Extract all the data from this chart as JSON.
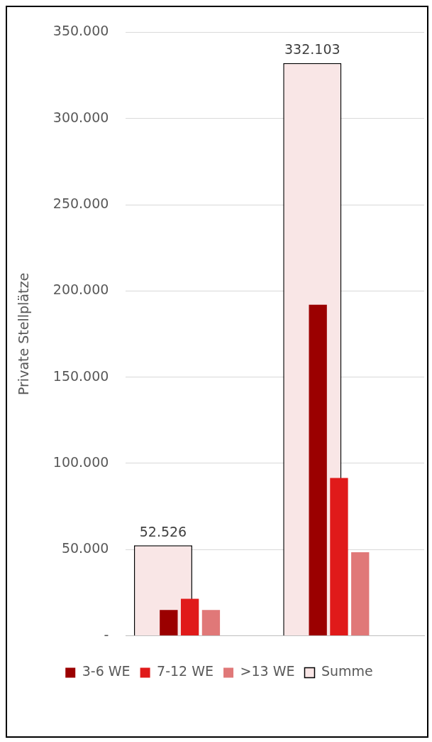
{
  "chart_data": {
    "type": "bar",
    "ylabel": "Private Stellplätze",
    "categories": [
      null,
      null
    ],
    "series": [
      {
        "name": "Summe",
        "color": "#f9e6e6",
        "values": [
          52526,
          332103
        ],
        "value_labels": [
          "52.526",
          "332.103"
        ]
      },
      {
        "name": "3-6 WE",
        "color": "#9b0000",
        "values": [
          15000,
          192000
        ]
      },
      {
        "name": "7-12 WE",
        "color": "#e01a1a",
        "values": [
          21500,
          91500
        ]
      },
      {
        "name": ">13 WE",
        "color": "#e07878",
        "values": [
          15000,
          48500
        ]
      }
    ],
    "ylim": [
      0,
      350000
    ],
    "yticks": [
      {
        "value": 0,
        "label": "-"
      },
      {
        "value": 50000,
        "label": "50.000"
      },
      {
        "value": 100000,
        "label": "100.000"
      },
      {
        "value": 150000,
        "label": "150.000"
      },
      {
        "value": 200000,
        "label": "200.000"
      },
      {
        "value": 250000,
        "label": "250.000"
      },
      {
        "value": 300000,
        "label": "300.000"
      },
      {
        "value": 350000,
        "label": "350.000"
      }
    ],
    "grid": "y",
    "legend": "bottom"
  }
}
